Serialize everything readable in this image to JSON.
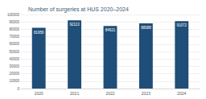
{
  "chart_data": {
    "type": "bar",
    "title": "Number of surgeries at HUS 2020–2024",
    "categories": [
      "2020",
      "2021",
      "2022",
      "2023",
      "2024"
    ],
    "values": [
      81956,
      92113,
      84621,
      88088,
      91072
    ],
    "color": "#1f4e79",
    "ylim": [
      0,
      100000
    ],
    "yticks": [
      0,
      10000,
      20000,
      30000,
      40000,
      50000,
      60000,
      70000,
      80000,
      90000,
      100000
    ],
    "grid": true,
    "data_labels": true
  }
}
